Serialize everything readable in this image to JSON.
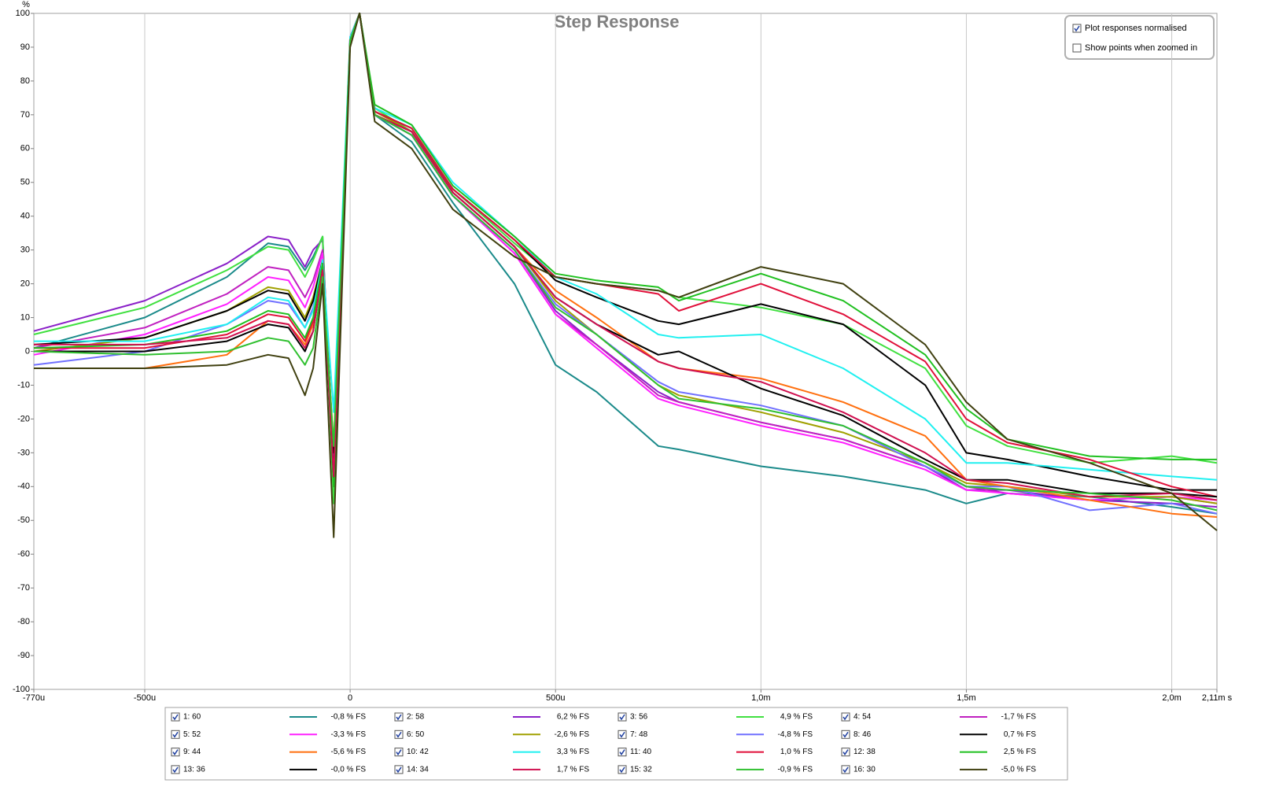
{
  "chart_data": {
    "type": "line",
    "title": "Step Response",
    "y_label": "%",
    "x": [
      -0.00077,
      -0.0005,
      -0.0003,
      -0.0002,
      -0.00015,
      -0.00011,
      -9e-05,
      -6.7e-05,
      -4e-05,
      0,
      2.3e-05,
      6e-05,
      0.00015,
      0.00025,
      0.0004,
      0.0005,
      0.0006,
      0.00075,
      0.0008,
      0.001,
      0.0012,
      0.0014,
      0.0015,
      0.0016,
      0.0018,
      0.002,
      0.00211
    ],
    "xlim": [
      -0.00077,
      0.00211
    ],
    "xticks": [
      {
        "value": -0.00077,
        "label": "-770u"
      },
      {
        "value": -0.0005,
        "label": "-500u"
      },
      0,
      {
        "value": 0.0005,
        "label": "500u"
      },
      {
        "value": 0.001,
        "label": "1,0m"
      },
      {
        "value": 0.0015,
        "label": "1,5m"
      },
      {
        "value": 0.002,
        "label": "2,0m"
      },
      {
        "value": 0.00211,
        "label": "2,11m s"
      }
    ],
    "ylim": [
      -100,
      100
    ],
    "yticks": [
      -100,
      -90,
      -80,
      -70,
      -60,
      -50,
      -40,
      -30,
      -20,
      -10,
      0,
      10,
      20,
      30,
      40,
      50,
      60,
      70,
      80,
      90,
      100
    ],
    "grid": "x",
    "series": [
      {
        "name": "1: 60",
        "note": "-0,8 % FS",
        "color": "#1a8a8a",
        "values": [
          1,
          10,
          22,
          32,
          31,
          24,
          28,
          34,
          -38,
          92,
          100,
          70,
          62,
          44,
          20,
          -4,
          -12,
          -28,
          -29,
          -34,
          -37,
          -41,
          -45,
          -42,
          -43,
          -46,
          -48
        ]
      },
      {
        "name": "2: 58",
        "note": "6,2 % FS",
        "color": "#8a20c8",
        "values": [
          6,
          15,
          26,
          34,
          33,
          25,
          30,
          33,
          -35,
          93,
          100,
          70,
          64,
          46,
          30,
          12,
          2,
          -12,
          -15,
          -21,
          -26,
          -34,
          -41,
          -41,
          -44,
          -45,
          -46
        ]
      },
      {
        "name": "3: 56",
        "note": "4,9 % FS",
        "color": "#40e040",
        "values": [
          5,
          13,
          24,
          31,
          30,
          22,
          27,
          34,
          -45,
          92,
          100,
          72,
          65,
          48,
          32,
          22,
          20,
          18,
          16,
          13,
          8,
          -5,
          -22,
          -28,
          -33,
          -31,
          -33
        ]
      },
      {
        "name": "4: 54",
        "note": "-1,7 % FS",
        "color": "#c020c0",
        "values": [
          1,
          7,
          17,
          25,
          24,
          16,
          21,
          30,
          -35,
          93,
          100,
          70,
          64,
          46,
          29,
          11,
          2,
          -13,
          -15,
          -21,
          -26,
          -34,
          -40,
          -42,
          -44,
          -43,
          -45
        ]
      },
      {
        "name": "5: 52",
        "note": "-3,3 % FS",
        "color": "#ff20ff",
        "values": [
          -1,
          5,
          14,
          22,
          21,
          13,
          19,
          29,
          -33,
          93,
          100,
          70,
          64,
          46,
          29,
          11,
          1,
          -14,
          -16,
          -22,
          -27,
          -35,
          -41,
          -42,
          -44,
          -43,
          -44
        ]
      },
      {
        "name": "6: 50",
        "note": "-2,6 % FS",
        "color": "#a0a000",
        "values": [
          0,
          4,
          12,
          19,
          18,
          10,
          16,
          27,
          -30,
          92,
          100,
          71,
          65,
          47,
          31,
          15,
          5,
          -10,
          -13,
          -18,
          -24,
          -33,
          -39,
          -40,
          -43,
          -43,
          -45
        ]
      },
      {
        "name": "7: 48",
        "note": "-4,8 % FS",
        "color": "#7070ff",
        "values": [
          -4,
          0,
          8,
          15,
          14,
          7,
          13,
          26,
          -33,
          92,
          100,
          70,
          64,
          46,
          30,
          14,
          5,
          -9,
          -12,
          -16,
          -22,
          -34,
          -40,
          -40,
          -47,
          -45,
          -48
        ]
      },
      {
        "name": "8: 46",
        "note": "0,7 % FS",
        "color": "#000000",
        "values": [
          2,
          4,
          12,
          18,
          17,
          9,
          15,
          27,
          -30,
          92,
          100,
          71,
          66,
          48,
          33,
          21,
          16,
          9,
          8,
          14,
          8,
          -10,
          -30,
          -32,
          -37,
          -41,
          -41
        ]
      },
      {
        "name": "9: 44",
        "note": "-5,6 % FS",
        "color": "#ff7010",
        "values": [
          -5,
          -5,
          -1,
          9,
          8,
          2,
          8,
          24,
          -28,
          92,
          100,
          70,
          65,
          47,
          31,
          18,
          10,
          -3,
          -5,
          -8,
          -15,
          -25,
          -38,
          -40,
          -44,
          -48,
          -49
        ]
      },
      {
        "name": "10: 42",
        "note": "3,3 % FS",
        "color": "#20f0f0",
        "values": [
          3,
          3,
          8,
          16,
          15,
          7,
          12,
          27,
          -18,
          93,
          100,
          72,
          67,
          50,
          34,
          22,
          17,
          5,
          4,
          5,
          -5,
          -20,
          -33,
          -33,
          -35,
          -37,
          -38
        ]
      },
      {
        "name": "11: 40",
        "note": "1,0 % FS",
        "color": "#e0103a",
        "values": [
          1,
          1,
          5,
          11,
          10,
          3,
          9,
          25,
          -38,
          92,
          100,
          71,
          66,
          48,
          33,
          22,
          20,
          17,
          12,
          20,
          11,
          -3,
          -20,
          -27,
          -32,
          -40,
          -43
        ]
      },
      {
        "name": "12: 38",
        "note": "2,5 % FS",
        "color": "#20c020",
        "values": [
          1,
          2,
          6,
          12,
          11,
          4,
          10,
          26,
          -40,
          92,
          100,
          73,
          67,
          49,
          34,
          23,
          21,
          19,
          15,
          23,
          15,
          -1,
          -17,
          -26,
          -31,
          -32,
          -32
        ]
      },
      {
        "name": "13: 36",
        "note": "-0,0 % FS",
        "color": "#000000",
        "values": [
          0,
          0,
          3,
          8,
          7,
          0,
          6,
          24,
          -37,
          92,
          100,
          70,
          65,
          47,
          31,
          16,
          8,
          -1,
          0,
          -11,
          -19,
          -32,
          -38,
          -38,
          -42,
          -42,
          -43
        ]
      },
      {
        "name": "14: 34",
        "note": "1,7 % FS",
        "color": "#d01050",
        "values": [
          2,
          2,
          4,
          9,
          8,
          1,
          6,
          24,
          -37,
          92,
          100,
          70,
          65,
          47,
          31,
          16,
          8,
          -3,
          -5,
          -9,
          -18,
          -30,
          -38,
          -39,
          -43,
          -42,
          -44
        ]
      },
      {
        "name": "15: 32",
        "note": "-0,9 % FS",
        "color": "#30c030",
        "values": [
          0,
          -1,
          0,
          4,
          3,
          -4,
          1,
          22,
          -28,
          92,
          100,
          70,
          64,
          46,
          30,
          13,
          5,
          -10,
          -14,
          -17,
          -22,
          -33,
          -40,
          -41,
          -42,
          -44,
          -47
        ]
      },
      {
        "name": "16: 30",
        "note": "-5,0 % FS",
        "color": "#404010",
        "values": [
          -5,
          -5,
          -4,
          -1,
          -2,
          -13,
          -5,
          20,
          -55,
          90,
          100,
          68,
          60,
          42,
          28,
          22,
          20,
          18,
          16,
          25,
          20,
          2,
          -15,
          -26,
          -33,
          -42,
          -53
        ]
      }
    ]
  },
  "controls": [
    {
      "label": "Plot responses normalised",
      "checked": true
    },
    {
      "label": "Show points when zoomed in",
      "checked": false
    }
  ]
}
